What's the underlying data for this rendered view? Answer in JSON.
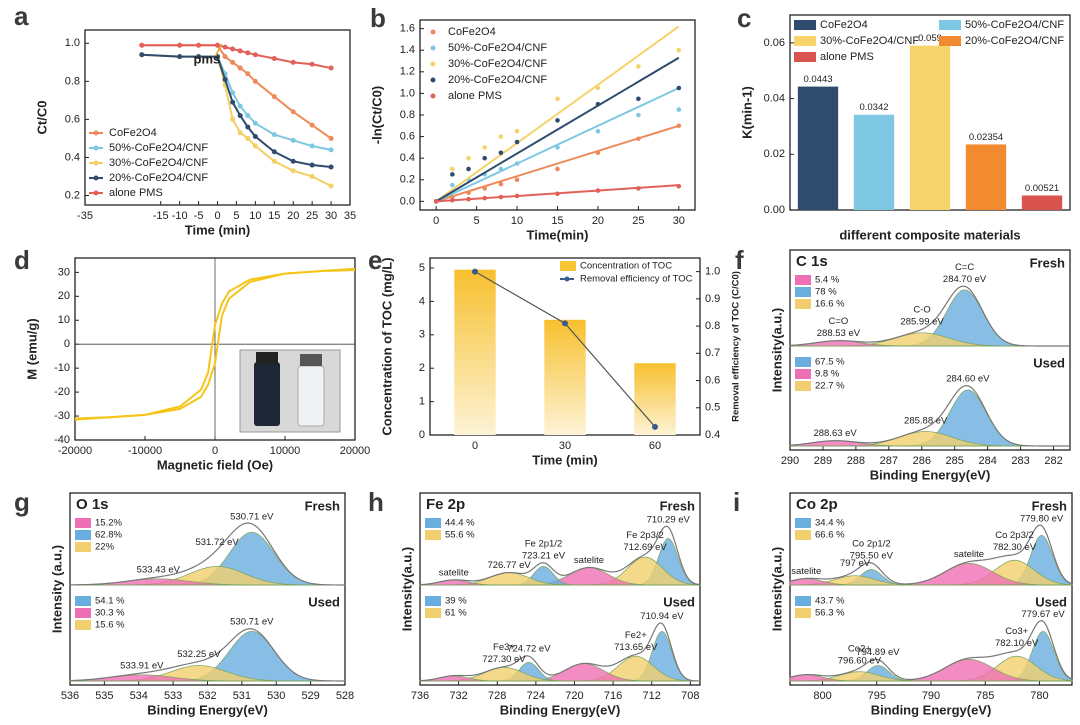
{
  "chart_data": [
    {
      "type": "line",
      "label": "a",
      "markers": true,
      "legend": "lower left",
      "annotation": "pms",
      "x_label": "Time (min)",
      "y_label": "Ct/C0",
      "x": [
        -20,
        -10,
        -5,
        0,
        2,
        4,
        6,
        8,
        10,
        15,
        20,
        25,
        30
      ],
      "xlim": [
        -35,
        35
      ],
      "xticks": [
        -35,
        -15,
        -10,
        -5,
        0,
        5,
        10,
        15,
        20,
        25,
        30,
        35
      ],
      "ylim": [
        0.15,
        1.07
      ],
      "yticks": [
        0.2,
        0.4,
        0.6,
        0.8,
        {
          "value": 1,
          "label": "1.0"
        }
      ],
      "series": [
        {
          "name": "CoFe2O4",
          "color": "#ee8a5a",
          "values": [
            0.99,
            0.99,
            0.99,
            0.99,
            0.93,
            0.9,
            0.87,
            0.84,
            0.8,
            0.72,
            0.64,
            0.57,
            0.5
          ]
        },
        {
          "name": "50%-CoFe2O4/CNF",
          "color": "#7ec8e3",
          "values": [
            0.94,
            0.93,
            0.93,
            0.93,
            0.84,
            0.74,
            0.67,
            0.62,
            0.58,
            0.52,
            0.49,
            0.46,
            0.44
          ]
        },
        {
          "name": "30%-CoFe2O4/CNF",
          "color": "#f5cf63",
          "values": [
            0.94,
            0.93,
            0.93,
            0.93,
            0.78,
            0.6,
            0.53,
            0.5,
            0.46,
            0.38,
            0.33,
            0.3,
            0.25
          ]
        },
        {
          "name": "20%-CoFe2O4/CNF",
          "color": "#2f4b6e",
          "values": [
            0.94,
            0.93,
            0.93,
            0.93,
            0.81,
            0.69,
            0.62,
            0.56,
            0.51,
            0.43,
            0.38,
            0.36,
            0.35
          ]
        },
        {
          "name": "alone PMS",
          "color": "#e2605a",
          "values": [
            0.99,
            0.99,
            0.99,
            0.99,
            0.98,
            0.97,
            0.96,
            0.95,
            0.94,
            0.92,
            0.9,
            0.89,
            0.87
          ]
        }
      ]
    },
    {
      "type": "scatter",
      "label": "b",
      "legend": "upper left",
      "x_label": "Time(min)",
      "y_label": "-ln(Ct/C0)",
      "x": [
        0,
        2,
        4,
        6,
        8,
        10,
        15,
        20,
        25,
        30
      ],
      "xlim": [
        -2,
        32
      ],
      "xticks": [
        0,
        5,
        10,
        15,
        20,
        25,
        30
      ],
      "ylim": [
        -0.08,
        1.68
      ],
      "yticks": [
        {
          "value": 0,
          "label": "0.0"
        },
        0.2,
        0.4,
        0.6,
        0.8,
        {
          "value": 1,
          "label": "1.0"
        },
        1.2,
        1.4,
        1.6
      ],
      "series": [
        {
          "name": "CoFe2O4",
          "color": "#ee8a5a",
          "values": [
            0,
            0.04,
            0.08,
            0.12,
            0.16,
            0.2,
            0.3,
            0.45,
            0.58,
            0.7
          ],
          "fit": [
            0,
            0.7
          ]
        },
        {
          "name": "50%-CoFe2O4/CNF",
          "color": "#7ec8e3",
          "values": [
            0,
            0.15,
            0.2,
            0.25,
            0.3,
            0.35,
            0.5,
            0.65,
            0.8,
            0.85
          ],
          "fit": [
            0,
            1.05
          ]
        },
        {
          "name": "30%-CoFe2O4/CNF",
          "color": "#f5d36b",
          "values": [
            0,
            0.3,
            0.4,
            0.5,
            0.6,
            0.65,
            0.95,
            1.05,
            1.25,
            1.4
          ],
          "fit": [
            0,
            1.62
          ]
        },
        {
          "name": "20%-CoFe2O4/CNF",
          "color": "#2f4b6e",
          "values": [
            0,
            0.25,
            0.3,
            0.4,
            0.45,
            0.55,
            0.75,
            0.9,
            0.95,
            1.05
          ],
          "fit": [
            0,
            1.33
          ]
        },
        {
          "name": "alone PMS",
          "color": "#e2605a",
          "values": [
            0,
            0.01,
            0.02,
            0.03,
            0.04,
            0.05,
            0.07,
            0.1,
            0.12,
            0.14
          ],
          "fit": [
            0,
            0.15
          ]
        }
      ]
    },
    {
      "type": "bar",
      "label": "c",
      "legend": "top",
      "x_label": "different composite materials",
      "y_label": "K(min-1)",
      "categories": [
        "CoFe2O4",
        "50%-CoFe2O4/CNF",
        "30%-CoFe2O4/CNF",
        "20%-CoFe2O4/CNF",
        "alone PMS"
      ],
      "values": [
        0.0443,
        0.0342,
        0.059,
        0.02354,
        0.00521
      ],
      "colors": [
        "#2f4b6e",
        "#7ec8e3",
        "#f7d36b",
        "#f28a30",
        "#d9534f"
      ],
      "ylim": [
        0,
        0.07
      ],
      "yticks": [
        {
          "value": 0,
          "label": "0.00"
        },
        0.02,
        0.04,
        0.06
      ]
    },
    {
      "type": "line",
      "label": "d",
      "zero_lines": true,
      "x_label": "Magnetic field (Oe)",
      "y_label": "M (emu/g)",
      "x": [
        -20000,
        -15000,
        -10000,
        -5000,
        -2000,
        -1000,
        0,
        1000,
        2000,
        5000,
        10000,
        15000,
        20000
      ],
      "xlim": [
        -20000,
        20000
      ],
      "xticks": [
        -20000,
        -10000,
        0,
        10000,
        20000
      ],
      "ylim": [
        -40,
        36
      ],
      "yticks": [
        -40,
        -30,
        -20,
        -10,
        0,
        10,
        20,
        30
      ],
      "series": [
        {
          "color": "#f5c518",
          "values": [
            -31,
            -30.5,
            -29.5,
            -26,
            -19,
            -12,
            8,
            17,
            22,
            27,
            29.5,
            30.5,
            31.5
          ]
        },
        {
          "color": "#f5c518",
          "values": [
            -31.5,
            -30.5,
            -29.5,
            -27,
            -22,
            -17,
            -8,
            12,
            19,
            26,
            29.5,
            30.5,
            31
          ]
        }
      ]
    },
    {
      "type": "combo",
      "label": "e",
      "legend": "upper right",
      "x_label": "Time (min)",
      "y_label": "Concentration of TOC (mg/L)",
      "y2_label": "Removal efficiency of TOC (C/C0)",
      "categories": [
        "0",
        "30",
        "60"
      ],
      "ylim": [
        0,
        5.3
      ],
      "yticks": [
        0,
        1,
        2,
        3,
        4,
        5
      ],
      "y2lim": [
        0.4,
        1.05
      ],
      "y2ticks": [
        0.4,
        0.5,
        0.6,
        0.7,
        0.8,
        0.9,
        {
          "value": 1,
          "label": "1.0"
        }
      ],
      "series": [
        {
          "name": "Concentration of TOC",
          "color": "#f7c433",
          "values": [
            4.95,
            3.45,
            2.15
          ]
        },
        {
          "name": "Removal efficiency of TOC",
          "color": "#3b5b8c",
          "values": [
            1.0,
            0.81,
            0.43
          ],
          "axis": "y2"
        }
      ]
    },
    {
      "type": "xps",
      "label": "f",
      "title": "C 1s",
      "x_label": "Binding Energy(eV)",
      "y_label": "Intensity(a.u.)",
      "xlim": [
        290,
        281.5
      ],
      "xticks": [
        290,
        289,
        288,
        287,
        286,
        285,
        284,
        283,
        282
      ],
      "spectra": [
        {
          "name": "Fresh",
          "legend": [
            {
              "label": "5.4 %",
              "color": "#ef6fb4"
            },
            {
              "label": "78 %",
              "color": "#6aaee0"
            },
            {
              "label": "16.6 %",
              "color": "#f2cf6e"
            }
          ],
          "peaks": [
            {
              "center": 284.7,
              "height": 0.85,
              "width": 0.55,
              "color": "#6aaee0",
              "label": "284.70 eV",
              "tag": "C=C"
            },
            {
              "center": 285.99,
              "height": 0.2,
              "width": 0.8,
              "color": "#f2cf6e",
              "label": "285.99 eV",
              "tag": "C-O"
            },
            {
              "center": 288.53,
              "height": 0.08,
              "width": 0.7,
              "color": "#ef6fb4",
              "label": "288.53 eV",
              "tag": "C=O"
            }
          ]
        },
        {
          "name": "Used",
          "legend": [
            {
              "label": "67.5 %",
              "color": "#6aaee0"
            },
            {
              "label": "9.8 %",
              "color": "#ef6fb4"
            },
            {
              "label": "22.7 %",
              "color": "#f2cf6e"
            }
          ],
          "peaks": [
            {
              "center": 284.6,
              "height": 0.85,
              "width": 0.55,
              "color": "#6aaee0",
              "label": "284.60 eV"
            },
            {
              "center": 285.88,
              "height": 0.22,
              "width": 0.8,
              "color": "#f2cf6e",
              "label": "285.88 eV"
            },
            {
              "center": 288.63,
              "height": 0.08,
              "width": 0.7,
              "color": "#ef6fb4",
              "label": "288.63 eV"
            }
          ]
        }
      ]
    },
    {
      "type": "xps",
      "label": "g",
      "title": "O 1s",
      "x_label": "Binding Energy(eV)",
      "y_label": "Intensity (a.u.)",
      "xlim": [
        536,
        528
      ],
      "xticks": [
        536,
        535,
        534,
        533,
        532,
        531,
        530,
        529,
        528
      ],
      "spectra": [
        {
          "name": "Fresh",
          "legend": [
            {
              "label": "15.2%",
              "color": "#ef6fb4"
            },
            {
              "label": "62.8%",
              "color": "#6aaee0"
            },
            {
              "label": "22%",
              "color": "#f2cf6e"
            }
          ],
          "peaks": [
            {
              "center": 530.71,
              "height": 0.85,
              "width": 0.65,
              "color": "#6aaee0",
              "label": "530.71 eV"
            },
            {
              "center": 531.72,
              "height": 0.3,
              "width": 0.8,
              "color": "#f2cf6e",
              "label": "531.72 eV"
            },
            {
              "center": 533.43,
              "height": 0.1,
              "width": 0.9,
              "color": "#ef6fb4",
              "label": "533.43 eV"
            }
          ]
        },
        {
          "name": "Used",
          "legend": [
            {
              "label": "54.1 %",
              "color": "#6aaee0"
            },
            {
              "label": "30.3 %",
              "color": "#ef6fb4"
            },
            {
              "label": "15.6 %",
              "color": "#f2cf6e"
            }
          ],
          "peaks": [
            {
              "center": 530.71,
              "height": 0.8,
              "width": 0.65,
              "color": "#6aaee0",
              "label": "530.71 eV"
            },
            {
              "center": 532.25,
              "height": 0.25,
              "width": 0.8,
              "color": "#f2cf6e",
              "label": "532.25 eV"
            },
            {
              "center": 533.91,
              "height": 0.1,
              "width": 0.9,
              "color": "#ef6fb4",
              "label": "533.91 eV"
            }
          ]
        }
      ]
    },
    {
      "type": "xps",
      "label": "h",
      "title": "Fe 2p",
      "x_label": "Binding Energy(eV)",
      "y_label": "Intensity(a.u.)",
      "xlim": [
        736,
        707
      ],
      "xticks": [
        736,
        732,
        728,
        724,
        720,
        716,
        712,
        708
      ],
      "spectra": [
        {
          "name": "Fresh",
          "legend": [
            {
              "label": "44.4 %",
              "color": "#6aaee0"
            },
            {
              "label": "55.6 %",
              "color": "#f2cf6e"
            }
          ],
          "peaks": [
            {
              "center": 710.29,
              "height": 0.75,
              "width": 1.0,
              "color": "#6aaee0",
              "label": "710.29 eV"
            },
            {
              "center": 712.69,
              "height": 0.45,
              "width": 1.8,
              "color": "#f2cf6e",
              "label": "712.69 eV",
              "tag": "Fe 2p3/2"
            },
            {
              "center": 718.5,
              "height": 0.28,
              "width": 2.0,
              "color": "#ef6fb4",
              "label": "satelite"
            },
            {
              "center": 723.21,
              "height": 0.3,
              "width": 1.0,
              "color": "#6aaee0",
              "label": "723.21 eV",
              "tag": "Fe 2p1/2"
            },
            {
              "center": 726.77,
              "height": 0.2,
              "width": 2.0,
              "color": "#f2cf6e",
              "label": "726.77 eV"
            },
            {
              "center": 732.5,
              "height": 0.08,
              "width": 1.5,
              "color": "#ef6fb4",
              "label": "satelite"
            }
          ]
        },
        {
          "name": "Used",
          "legend": [
            {
              "label": "39 %",
              "color": "#6aaee0"
            },
            {
              "label": "61 %",
              "color": "#f2cf6e"
            }
          ],
          "peaks": [
            {
              "center": 710.94,
              "height": 0.8,
              "width": 1.0,
              "color": "#6aaee0",
              "label": "710.94 eV"
            },
            {
              "center": 713.65,
              "height": 0.4,
              "width": 1.8,
              "color": "#f2cf6e",
              "label": "713.65 eV",
              "tag": "Fe2+"
            },
            {
              "center": 719,
              "height": 0.28,
              "width": 2.0,
              "color": "#ef6fb4"
            },
            {
              "center": 724.72,
              "height": 0.3,
              "width": 1.0,
              "color": "#6aaee0",
              "label": "724.72 eV"
            },
            {
              "center": 727.3,
              "height": 0.22,
              "width": 2.0,
              "color": "#f2cf6e",
              "label": "727.30 eV",
              "tag": "Fe3+"
            },
            {
              "center": 732.5,
              "height": 0.08,
              "width": 1.5,
              "color": "#ef6fb4"
            }
          ]
        }
      ]
    },
    {
      "type": "xps",
      "label": "i",
      "title": "Co 2p",
      "x_label": "Binding Energy(eV)",
      "y_label": "Intensity(a.u.)",
      "xlim": [
        803,
        777
      ],
      "xticks": [
        800,
        795,
        790,
        785,
        780
      ],
      "spectra": [
        {
          "name": "Fresh",
          "legend": [
            {
              "label": "34.4 %",
              "color": "#6aaee0"
            },
            {
              "label": "66.6 %",
              "color": "#f2cf6e"
            }
          ],
          "peaks": [
            {
              "center": 779.8,
              "height": 0.8,
              "width": 1.0,
              "color": "#6aaee0",
              "label": "779.80 eV"
            },
            {
              "center": 782.3,
              "height": 0.4,
              "width": 1.8,
              "color": "#f2cf6e",
              "label": "782.30 eV",
              "tag": "Co 2p3/2"
            },
            {
              "center": 786.5,
              "height": 0.35,
              "width": 2.2,
              "color": "#ef6fb4",
              "label": "satelite"
            },
            {
              "center": 795.5,
              "height": 0.25,
              "width": 1.0,
              "color": "#6aaee0",
              "label": "795.50 eV",
              "tag": "Co 2p1/2"
            },
            {
              "center": 797,
              "height": 0.15,
              "width": 1.8,
              "color": "#f2cf6e",
              "label": "797 eV"
            },
            {
              "center": 801.5,
              "height": 0.1,
              "width": 1.5,
              "color": "#ef6fb4",
              "label": "satelite"
            }
          ]
        },
        {
          "name": "Used",
          "legend": [
            {
              "label": "43.7 %",
              "color": "#6aaee0"
            },
            {
              "label": "56.3 %",
              "color": "#f2cf6e"
            }
          ],
          "peaks": [
            {
              "center": 779.67,
              "height": 0.8,
              "width": 1.0,
              "color": "#6aaee0",
              "label": "779.67 eV"
            },
            {
              "center": 782.1,
              "height": 0.4,
              "width": 1.8,
              "color": "#f2cf6e",
              "label": "782.10 eV",
              "tag": "Co3+"
            },
            {
              "center": 786.5,
              "height": 0.35,
              "width": 2.2,
              "color": "#ef6fb4"
            },
            {
              "center": 794.89,
              "height": 0.25,
              "width": 1.0,
              "color": "#6aaee0",
              "label": "794.89 eV"
            },
            {
              "center": 796.6,
              "height": 0.15,
              "width": 1.8,
              "color": "#f2cf6e",
              "label": "796.60 eV",
              "tag": "Co2+"
            },
            {
              "center": 801.5,
              "height": 0.1,
              "width": 1.5,
              "color": "#ef6fb4"
            }
          ]
        }
      ]
    }
  ]
}
